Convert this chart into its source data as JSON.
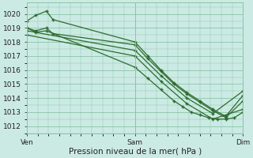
{
  "bg_color": "#cceae4",
  "grid_color": "#88c4a8",
  "line_color": "#2d6b2d",
  "marker_color": "#2d6b2d",
  "xlabel": "Pression niveau de la mer( hPa )",
  "xlabel_fontsize": 7.5,
  "tick_fontsize": 6.5,
  "ylim": [
    1011.5,
    1020.8
  ],
  "yticks": [
    1012,
    1013,
    1014,
    1015,
    1016,
    1017,
    1018,
    1019,
    1020
  ],
  "xtick_labels": [
    "Ven",
    "Sam",
    "Dim"
  ],
  "xtick_pos": [
    0.0,
    0.5,
    1.0
  ],
  "series": [
    {
      "x": [
        0.0,
        0.04,
        0.09,
        0.12,
        0.5,
        0.56,
        0.62,
        0.68,
        0.74,
        0.8,
        0.86,
        0.92,
        1.0
      ],
      "y": [
        1019.5,
        1019.9,
        1020.2,
        1019.6,
        1018.0,
        1017.0,
        1016.0,
        1015.1,
        1014.4,
        1013.8,
        1013.2,
        1012.7,
        1014.2
      ]
    },
    {
      "x": [
        0.0,
        0.04,
        0.09,
        0.12,
        0.5,
        0.56,
        0.62,
        0.68,
        0.74,
        0.8,
        0.86,
        0.92,
        1.0
      ],
      "y": [
        1019.0,
        1018.8,
        1019.0,
        1018.6,
        1017.8,
        1016.8,
        1015.9,
        1015.0,
        1014.3,
        1013.7,
        1013.1,
        1012.6,
        1013.8
      ]
    },
    {
      "x": [
        0.0,
        0.5,
        0.62,
        0.74,
        0.86,
        1.0
      ],
      "y": [
        1018.8,
        1017.4,
        1015.6,
        1014.0,
        1012.9,
        1014.5
      ]
    },
    {
      "x": [
        0.0,
        0.5,
        0.62,
        0.74,
        0.86,
        1.0
      ],
      "y": [
        1018.5,
        1017.0,
        1015.2,
        1013.6,
        1012.5,
        1013.2
      ]
    },
    {
      "x": [
        0.0,
        0.04,
        0.09,
        0.5,
        0.56,
        0.62,
        0.68,
        0.72,
        0.76,
        0.8,
        0.84,
        0.88,
        0.92,
        0.96,
        1.0
      ],
      "y": [
        1019.0,
        1018.7,
        1018.8,
        1016.2,
        1015.4,
        1014.6,
        1013.8,
        1013.4,
        1013.0,
        1012.8,
        1012.6,
        1012.5,
        1012.5,
        1012.6,
        1013.0
      ]
    }
  ]
}
